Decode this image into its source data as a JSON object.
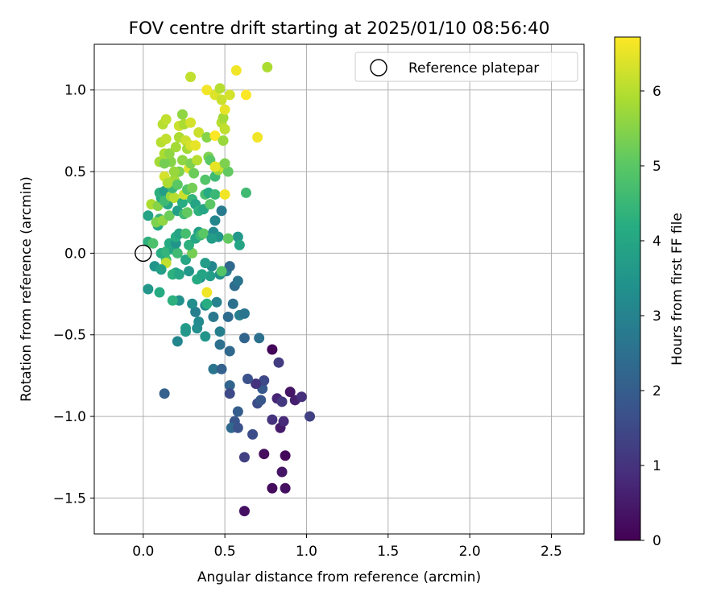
{
  "chart_data": {
    "type": "scatter",
    "title": "FOV centre drift starting at 2025/01/10 08:56:40",
    "xlabel": "Angular distance from reference (arcmin)",
    "ylabel": "Rotation from reference (arcmin)",
    "xlim": [
      -0.3,
      2.7
    ],
    "ylim": [
      -1.72,
      1.28
    ],
    "x_ticks": [
      0.0,
      0.5,
      1.0,
      1.5,
      2.0,
      2.5
    ],
    "x_tick_labels": [
      "0.0",
      "0.5",
      "1.0",
      "1.5",
      "2.0",
      "2.5"
    ],
    "y_ticks": [
      -1.5,
      -1.0,
      -0.5,
      0.0,
      0.5,
      1.0
    ],
    "y_tick_labels": [
      "−1.5",
      "−1.0",
      "−0.5",
      "0.0",
      "0.5",
      "1.0"
    ],
    "grid": true,
    "legend": {
      "position": "top-right",
      "label": "Reference platepar",
      "marker": "open-circle"
    },
    "reference_point": {
      "x": 0.0,
      "y": 0.0
    },
    "colorbar": {
      "label": "Hours from first FF file",
      "colormap": "viridis",
      "range": [
        0,
        6.72
      ],
      "ticks": [
        0,
        1,
        2,
        3,
        4,
        5,
        6
      ],
      "tick_labels": [
        "0",
        "1",
        "2",
        "3",
        "4",
        "5",
        "6"
      ]
    },
    "points": [
      {
        "x": 0.62,
        "y": -1.58,
        "h": 0.3
      },
      {
        "x": 0.79,
        "y": -1.44,
        "h": 0.2
      },
      {
        "x": 0.87,
        "y": -1.44,
        "h": 0.3
      },
      {
        "x": 0.85,
        "y": -1.34,
        "h": 0.4
      },
      {
        "x": 0.87,
        "y": -1.24,
        "h": 0.15
      },
      {
        "x": 0.74,
        "y": -1.23,
        "h": 0.25
      },
      {
        "x": 0.62,
        "y": -1.25,
        "h": 1.3
      },
      {
        "x": 0.67,
        "y": -1.11,
        "h": 1.6
      },
      {
        "x": 0.84,
        "y": -1.07,
        "h": 0.5
      },
      {
        "x": 0.86,
        "y": -1.03,
        "h": 0.8
      },
      {
        "x": 0.79,
        "y": -1.02,
        "h": 1.0
      },
      {
        "x": 1.02,
        "y": -1.0,
        "h": 1.3
      },
      {
        "x": 0.93,
        "y": -0.9,
        "h": 0.6
      },
      {
        "x": 0.97,
        "y": -0.88,
        "h": 0.9
      },
      {
        "x": 0.82,
        "y": -0.89,
        "h": 0.7
      },
      {
        "x": 0.85,
        "y": -0.91,
        "h": 1.1
      },
      {
        "x": 0.9,
        "y": -0.85,
        "h": 0.4
      },
      {
        "x": 0.7,
        "y": -0.92,
        "h": 1.6
      },
      {
        "x": 0.72,
        "y": -0.9,
        "h": 1.8
      },
      {
        "x": 0.73,
        "y": -0.83,
        "h": 1.9
      },
      {
        "x": 0.74,
        "y": -0.78,
        "h": 1.5
      },
      {
        "x": 0.69,
        "y": -0.8,
        "h": 1.0
      },
      {
        "x": 0.64,
        "y": -0.77,
        "h": 1.7
      },
      {
        "x": 0.83,
        "y": -0.67,
        "h": 1.2
      },
      {
        "x": 0.79,
        "y": -0.59,
        "h": 0.1
      },
      {
        "x": 0.53,
        "y": -0.81,
        "h": 2.2
      },
      {
        "x": 0.53,
        "y": -0.86,
        "h": 1.5
      },
      {
        "x": 0.58,
        "y": -0.97,
        "h": 2.0
      },
      {
        "x": 0.56,
        "y": -1.03,
        "h": 1.8
      },
      {
        "x": 0.54,
        "y": -1.07,
        "h": 2.3
      },
      {
        "x": 0.58,
        "y": -1.07,
        "h": 1.7
      },
      {
        "x": 0.13,
        "y": -0.86,
        "h": 2.1
      },
      {
        "x": 0.43,
        "y": -0.71,
        "h": 2.6
      },
      {
        "x": 0.48,
        "y": -0.71,
        "h": 2.1
      },
      {
        "x": 0.71,
        "y": -0.52,
        "h": 2.5
      },
      {
        "x": 0.62,
        "y": -0.52,
        "h": 2.2
      },
      {
        "x": 0.47,
        "y": -0.56,
        "h": 2.5
      },
      {
        "x": 0.53,
        "y": -0.6,
        "h": 2.3
      },
      {
        "x": 0.47,
        "y": -0.48,
        "h": 2.9
      },
      {
        "x": 0.38,
        "y": -0.51,
        "h": 3.5
      },
      {
        "x": 0.21,
        "y": -0.54,
        "h": 3.1
      },
      {
        "x": 0.26,
        "y": -0.46,
        "h": 3.7
      },
      {
        "x": 0.33,
        "y": -0.46,
        "h": 3.3
      },
      {
        "x": 0.26,
        "y": -0.48,
        "h": 3.6
      },
      {
        "x": 0.34,
        "y": -0.42,
        "h": 3.2
      },
      {
        "x": 0.43,
        "y": -0.39,
        "h": 2.7
      },
      {
        "x": 0.52,
        "y": -0.39,
        "h": 2.4
      },
      {
        "x": 0.59,
        "y": -0.38,
        "h": 2.9
      },
      {
        "x": 0.62,
        "y": -0.37,
        "h": 2.6
      },
      {
        "x": 0.55,
        "y": -0.31,
        "h": 2.5
      },
      {
        "x": 0.45,
        "y": -0.3,
        "h": 3.0
      },
      {
        "x": 0.38,
        "y": -0.32,
        "h": 3.2
      },
      {
        "x": 0.32,
        "y": -0.36,
        "h": 2.9
      },
      {
        "x": 0.3,
        "y": -0.31,
        "h": 3.3
      },
      {
        "x": 0.22,
        "y": -0.29,
        "h": 3.4
      },
      {
        "x": 0.18,
        "y": -0.29,
        "h": 4.3
      },
      {
        "x": 0.1,
        "y": -0.24,
        "h": 4.1
      },
      {
        "x": 0.03,
        "y": -0.22,
        "h": 3.6
      },
      {
        "x": 0.56,
        "y": -0.2,
        "h": 2.4
      },
      {
        "x": 0.58,
        "y": -0.17,
        "h": 2.6
      },
      {
        "x": 0.51,
        "y": -0.11,
        "h": 2.9
      },
      {
        "x": 0.53,
        "y": -0.08,
        "h": 2.3
      },
      {
        "x": 0.47,
        "y": -0.13,
        "h": 3.4
      },
      {
        "x": 0.42,
        "y": -0.08,
        "h": 3.1
      },
      {
        "x": 0.41,
        "y": -0.14,
        "h": 3.8
      },
      {
        "x": 0.35,
        "y": -0.15,
        "h": 3.3
      },
      {
        "x": 0.33,
        "y": -0.16,
        "h": 4.1
      },
      {
        "x": 0.38,
        "y": -0.06,
        "h": 3.7
      },
      {
        "x": 0.36,
        "y": -0.13,
        "h": 3.9
      },
      {
        "x": 0.48,
        "y": -0.11,
        "h": 4.9
      },
      {
        "x": 0.39,
        "y": -0.24,
        "h": 6.6
      },
      {
        "x": 0.39,
        "y": -0.31,
        "h": 4.2
      },
      {
        "x": 0.28,
        "y": -0.11,
        "h": 3.6
      },
      {
        "x": 0.26,
        "y": -0.04,
        "h": 4.0
      },
      {
        "x": 0.2,
        "y": -0.12,
        "h": 3.8
      },
      {
        "x": 0.14,
        "y": -0.04,
        "h": 4.7
      },
      {
        "x": 0.14,
        "y": -0.06,
        "h": 6.1
      },
      {
        "x": 0.07,
        "y": -0.08,
        "h": 3.5
      },
      {
        "x": 0.11,
        "y": -0.1,
        "h": 3.8
      },
      {
        "x": 0.18,
        "y": -0.13,
        "h": 4.3
      },
      {
        "x": 0.22,
        "y": -0.13,
        "h": 4.0
      },
      {
        "x": 0.11,
        "y": 0.0,
        "h": 4.2
      },
      {
        "x": 0.14,
        "y": 0.01,
        "h": 4.4
      },
      {
        "x": 0.19,
        "y": 0.02,
        "h": 3.9
      },
      {
        "x": 0.21,
        "y": 0.0,
        "h": 4.6
      },
      {
        "x": 0.3,
        "y": 0.0,
        "h": 5.3
      },
      {
        "x": 0.16,
        "y": 0.06,
        "h": 4.1
      },
      {
        "x": 0.2,
        "y": 0.06,
        "h": 3.5
      },
      {
        "x": 0.2,
        "y": 0.1,
        "h": 4.2
      },
      {
        "x": 0.22,
        "y": 0.12,
        "h": 3.9
      },
      {
        "x": 0.26,
        "y": 0.12,
        "h": 4.7
      },
      {
        "x": 0.28,
        "y": 0.05,
        "h": 4.3
      },
      {
        "x": 0.32,
        "y": 0.09,
        "h": 4.0
      },
      {
        "x": 0.34,
        "y": 0.13,
        "h": 3.8
      },
      {
        "x": 0.35,
        "y": 0.11,
        "h": 4.5
      },
      {
        "x": 0.37,
        "y": 0.12,
        "h": 5.0
      },
      {
        "x": 0.43,
        "y": 0.13,
        "h": 3.2
      },
      {
        "x": 0.46,
        "y": 0.1,
        "h": 3.5
      },
      {
        "x": 0.42,
        "y": 0.09,
        "h": 3.7
      },
      {
        "x": 0.44,
        "y": 0.2,
        "h": 3.1
      },
      {
        "x": 0.48,
        "y": 0.26,
        "h": 2.8
      },
      {
        "x": 0.58,
        "y": 0.1,
        "h": 3.6
      },
      {
        "x": 0.59,
        "y": 0.05,
        "h": 3.9
      },
      {
        "x": 0.52,
        "y": 0.09,
        "h": 5.1
      },
      {
        "x": 0.03,
        "y": 0.07,
        "h": 4.3
      },
      {
        "x": 0.06,
        "y": 0.06,
        "h": 4.8
      },
      {
        "x": 0.09,
        "y": 0.17,
        "h": 4.0
      },
      {
        "x": 0.1,
        "y": 0.21,
        "h": 4.4
      },
      {
        "x": 0.03,
        "y": 0.23,
        "h": 3.9
      },
      {
        "x": 0.08,
        "y": 0.19,
        "h": 5.4
      },
      {
        "x": 0.12,
        "y": 0.2,
        "h": 5.6
      },
      {
        "x": 0.16,
        "y": 0.23,
        "h": 5.2
      },
      {
        "x": 0.05,
        "y": 0.3,
        "h": 5.9
      },
      {
        "x": 0.09,
        "y": 0.29,
        "h": 5.5
      },
      {
        "x": 0.11,
        "y": 0.34,
        "h": 4.1
      },
      {
        "x": 0.1,
        "y": 0.37,
        "h": 4.3
      },
      {
        "x": 0.13,
        "y": 0.38,
        "h": 3.7
      },
      {
        "x": 0.15,
        "y": 0.3,
        "h": 4.0
      },
      {
        "x": 0.13,
        "y": 0.32,
        "h": 4.6
      },
      {
        "x": 0.17,
        "y": 0.35,
        "h": 5.7
      },
      {
        "x": 0.19,
        "y": 0.34,
        "h": 6.0
      },
      {
        "x": 0.18,
        "y": 0.4,
        "h": 4.5
      },
      {
        "x": 0.21,
        "y": 0.26,
        "h": 3.8
      },
      {
        "x": 0.24,
        "y": 0.31,
        "h": 4.2
      },
      {
        "x": 0.25,
        "y": 0.24,
        "h": 4.6
      },
      {
        "x": 0.27,
        "y": 0.25,
        "h": 5.1
      },
      {
        "x": 0.25,
        "y": 0.36,
        "h": 6.2
      },
      {
        "x": 0.27,
        "y": 0.39,
        "h": 4.9
      },
      {
        "x": 0.3,
        "y": 0.4,
        "h": 5.3
      },
      {
        "x": 0.3,
        "y": 0.33,
        "h": 4.4
      },
      {
        "x": 0.32,
        "y": 0.3,
        "h": 3.9
      },
      {
        "x": 0.34,
        "y": 0.26,
        "h": 4.3
      },
      {
        "x": 0.37,
        "y": 0.27,
        "h": 4.0
      },
      {
        "x": 0.38,
        "y": 0.36,
        "h": 4.7
      },
      {
        "x": 0.41,
        "y": 0.3,
        "h": 5.0
      },
      {
        "x": 0.4,
        "y": 0.37,
        "h": 4.1
      },
      {
        "x": 0.44,
        "y": 0.36,
        "h": 4.5
      },
      {
        "x": 0.5,
        "y": 0.36,
        "h": 6.6
      },
      {
        "x": 0.63,
        "y": 0.37,
        "h": 4.6
      },
      {
        "x": 0.19,
        "y": 0.45,
        "h": 5.8
      },
      {
        "x": 0.13,
        "y": 0.47,
        "h": 6.3
      },
      {
        "x": 0.15,
        "y": 0.43,
        "h": 5.9
      },
      {
        "x": 0.21,
        "y": 0.42,
        "h": 5.0
      },
      {
        "x": 0.22,
        "y": 0.5,
        "h": 5.4
      },
      {
        "x": 0.19,
        "y": 0.5,
        "h": 5.7
      },
      {
        "x": 0.17,
        "y": 0.56,
        "h": 5.5
      },
      {
        "x": 0.1,
        "y": 0.56,
        "h": 5.8
      },
      {
        "x": 0.13,
        "y": 0.55,
        "h": 5.3
      },
      {
        "x": 0.24,
        "y": 0.57,
        "h": 5.6
      },
      {
        "x": 0.28,
        "y": 0.52,
        "h": 6.4
      },
      {
        "x": 0.29,
        "y": 0.55,
        "h": 5.4
      },
      {
        "x": 0.31,
        "y": 0.49,
        "h": 5.2
      },
      {
        "x": 0.33,
        "y": 0.57,
        "h": 6.0
      },
      {
        "x": 0.38,
        "y": 0.45,
        "h": 4.9
      },
      {
        "x": 0.4,
        "y": 0.59,
        "h": 5.4
      },
      {
        "x": 0.41,
        "y": 0.57,
        "h": 5.0
      },
      {
        "x": 0.44,
        "y": 0.47,
        "h": 4.6
      },
      {
        "x": 0.46,
        "y": 0.51,
        "h": 5.7
      },
      {
        "x": 0.48,
        "y": 0.53,
        "h": 6.2
      },
      {
        "x": 0.52,
        "y": 0.5,
        "h": 5.1
      },
      {
        "x": 0.5,
        "y": 0.55,
        "h": 5.4
      },
      {
        "x": 0.44,
        "y": 0.53,
        "h": 6.5
      },
      {
        "x": 0.13,
        "y": 0.61,
        "h": 5.9
      },
      {
        "x": 0.16,
        "y": 0.61,
        "h": 5.6
      },
      {
        "x": 0.2,
        "y": 0.65,
        "h": 5.8
      },
      {
        "x": 0.11,
        "y": 0.68,
        "h": 6.0
      },
      {
        "x": 0.14,
        "y": 0.7,
        "h": 6.1
      },
      {
        "x": 0.22,
        "y": 0.71,
        "h": 5.9
      },
      {
        "x": 0.26,
        "y": 0.69,
        "h": 6.2
      },
      {
        "x": 0.27,
        "y": 0.64,
        "h": 5.8
      },
      {
        "x": 0.29,
        "y": 0.66,
        "h": 6.3
      },
      {
        "x": 0.32,
        "y": 0.66,
        "h": 6.5
      },
      {
        "x": 0.34,
        "y": 0.74,
        "h": 6.2
      },
      {
        "x": 0.39,
        "y": 0.71,
        "h": 5.5
      },
      {
        "x": 0.44,
        "y": 0.72,
        "h": 6.7
      },
      {
        "x": 0.49,
        "y": 0.69,
        "h": 5.7
      },
      {
        "x": 0.7,
        "y": 0.71,
        "h": 6.6
      },
      {
        "x": 0.12,
        "y": 0.79,
        "h": 6.0
      },
      {
        "x": 0.14,
        "y": 0.82,
        "h": 6.1
      },
      {
        "x": 0.22,
        "y": 0.78,
        "h": 6.2
      },
      {
        "x": 0.24,
        "y": 0.85,
        "h": 5.6
      },
      {
        "x": 0.25,
        "y": 0.79,
        "h": 5.9
      },
      {
        "x": 0.29,
        "y": 0.8,
        "h": 6.3
      },
      {
        "x": 0.48,
        "y": 0.8,
        "h": 6.0
      },
      {
        "x": 0.49,
        "y": 0.83,
        "h": 5.8
      },
      {
        "x": 0.5,
        "y": 0.76,
        "h": 6.1
      },
      {
        "x": 0.5,
        "y": 0.88,
        "h": 6.5
      },
      {
        "x": 0.39,
        "y": 1.0,
        "h": 6.6
      },
      {
        "x": 0.44,
        "y": 0.97,
        "h": 6.4
      },
      {
        "x": 0.47,
        "y": 1.01,
        "h": 6.0
      },
      {
        "x": 0.48,
        "y": 0.94,
        "h": 6.2
      },
      {
        "x": 0.53,
        "y": 0.97,
        "h": 6.3
      },
      {
        "x": 0.63,
        "y": 0.97,
        "h": 6.7
      },
      {
        "x": 0.29,
        "y": 1.08,
        "h": 6.1
      },
      {
        "x": 0.57,
        "y": 1.12,
        "h": 6.6
      },
      {
        "x": 0.76,
        "y": 1.14,
        "h": 5.9
      }
    ]
  }
}
